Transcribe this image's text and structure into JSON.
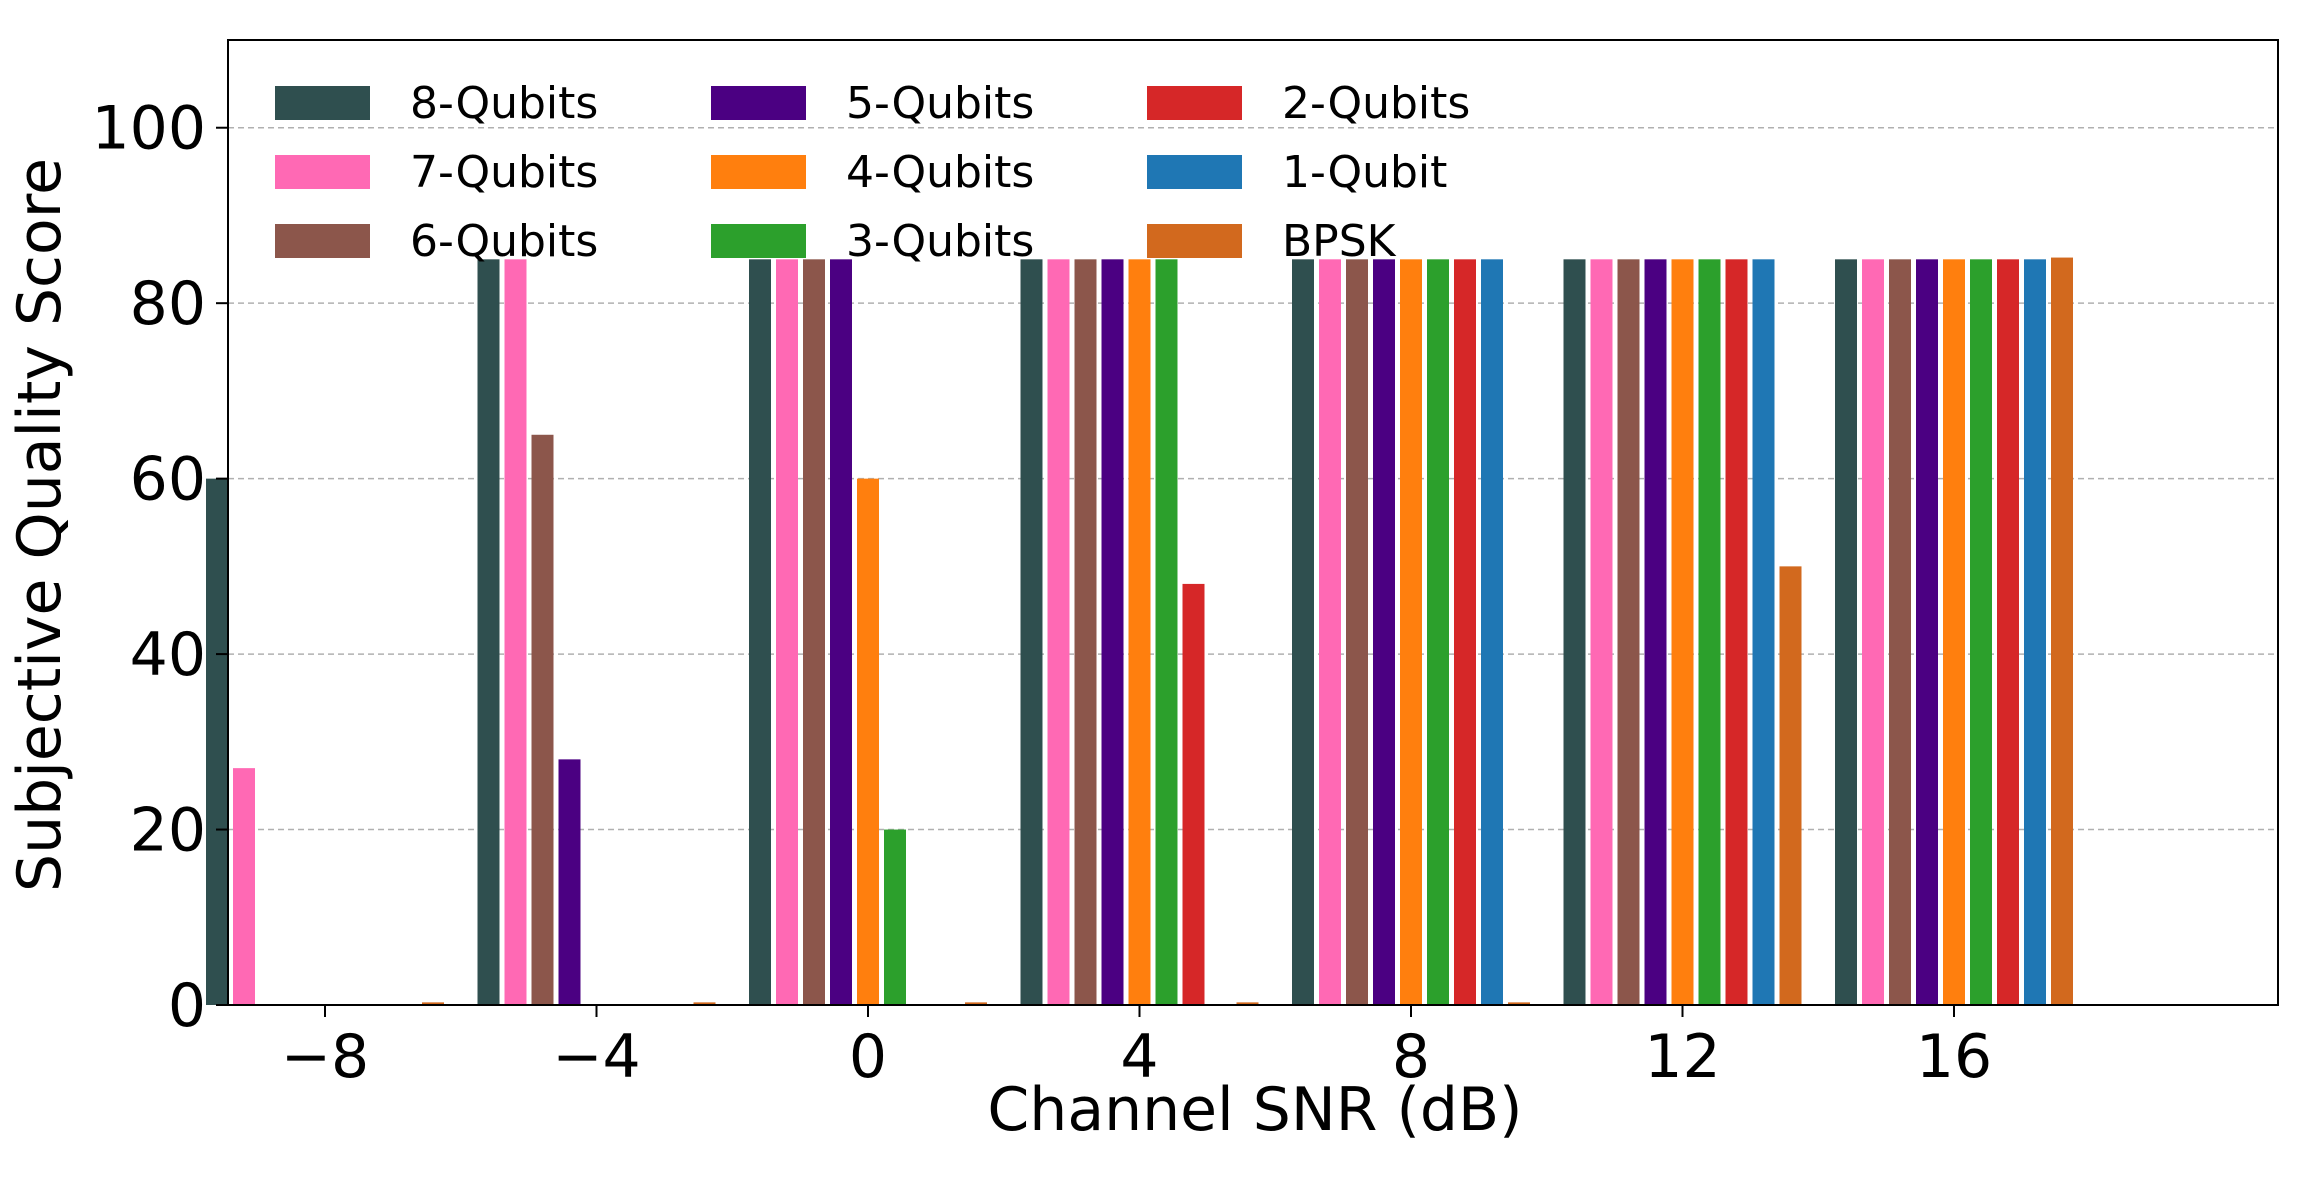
{
  "chart_data": {
    "type": "bar",
    "xlabel": "Channel SNR (dB)",
    "ylabel": "Subjective Quality Score",
    "categories": [
      "−8",
      "−4",
      "0",
      "4",
      "8",
      "12",
      "16"
    ],
    "ylim": [
      0,
      110
    ],
    "yticks": [
      0,
      20,
      40,
      60,
      80,
      100
    ],
    "grid": "horizontal dashed",
    "legend_placement": "top-left, 4 columns",
    "series": [
      {
        "name": "8-Qubits",
        "color": "#2f4f4f",
        "values": [
          60,
          85,
          85,
          85,
          85,
          85,
          85
        ]
      },
      {
        "name": "7-Qubits",
        "color": "#ff69b4",
        "values": [
          27,
          85,
          85,
          85,
          85,
          85,
          85
        ]
      },
      {
        "name": "6-Qubits",
        "color": "#8c564b",
        "values": [
          0,
          65,
          85,
          85,
          85,
          85,
          85
        ]
      },
      {
        "name": "5-Qubits",
        "color": "#4b0082",
        "values": [
          0,
          28,
          85,
          85,
          85,
          85,
          85
        ]
      },
      {
        "name": "4-Qubits",
        "color": "#ff7f0e",
        "values": [
          0,
          0,
          60,
          85,
          85,
          85,
          85
        ]
      },
      {
        "name": "3-Qubits",
        "color": "#2ca02c",
        "values": [
          0,
          0,
          20,
          85,
          85,
          85,
          85
        ]
      },
      {
        "name": "2-Qubits",
        "color": "#d62728",
        "values": [
          0,
          0,
          0,
          48,
          85,
          85,
          85
        ]
      },
      {
        "name": "1-Qubit",
        "color": "#1f77b4",
        "values": [
          0,
          0,
          0,
          0,
          85,
          85,
          85
        ]
      },
      {
        "name": "BPSK",
        "color": "#d2691e",
        "values": [
          0.3,
          0.3,
          0.3,
          0.3,
          0.3,
          50,
          85.2
        ]
      }
    ]
  }
}
